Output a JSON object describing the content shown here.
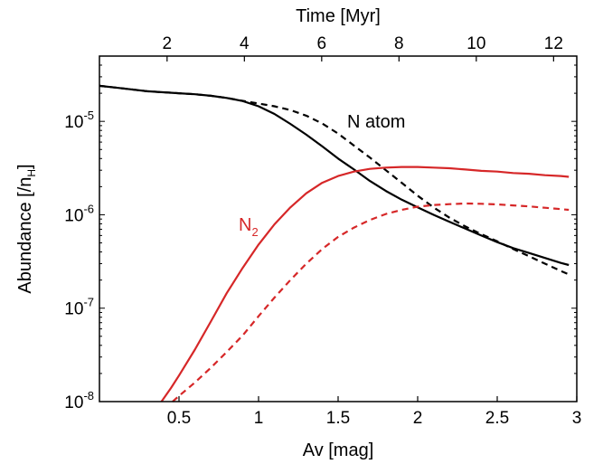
{
  "chart_data": {
    "type": "line",
    "ylabel_main": "Abundance [/n",
    "ylabel_sub": "H",
    "ylabel_end": "]",
    "xlabel": "Av [mag]",
    "xlabel_top": "Time [Myr]",
    "xlim": [
      0,
      3
    ],
    "ylim": [
      1e-08,
      5e-05
    ],
    "yscale": "log",
    "xlim_top": [
      0.25,
      12.6
    ],
    "x_ticks": [
      "0.5",
      "1",
      "1.5",
      "2",
      "2.5",
      "3"
    ],
    "x_tick_values": [
      0.5,
      1,
      1.5,
      2,
      2.5,
      3
    ],
    "top_ticks": [
      "2",
      "4",
      "6",
      "8",
      "10",
      "12"
    ],
    "top_tick_values": [
      2,
      4,
      6,
      8,
      10,
      12
    ],
    "y_ticks": [
      {
        "base": "10",
        "exp": "-5",
        "value": 1e-05
      },
      {
        "base": "10",
        "exp": "-6",
        "value": 1e-06
      },
      {
        "base": "10",
        "exp": "-7",
        "value": 1e-07
      },
      {
        "base": "10",
        "exp": "-8",
        "value": 1e-08
      }
    ],
    "annotations": [
      {
        "text": "N atom",
        "color": "#000000"
      },
      {
        "text": "N",
        "sub": "2",
        "color": "#d62728"
      }
    ],
    "series": [
      {
        "color": "#000000",
        "dash": "solid",
        "x": [
          0.0,
          0.1,
          0.2,
          0.3,
          0.4,
          0.5,
          0.6,
          0.7,
          0.8,
          0.9,
          1.0,
          1.1,
          1.2,
          1.3,
          1.4,
          1.5,
          1.6,
          1.7,
          1.8,
          1.9,
          2.0,
          2.1,
          2.2,
          2.3,
          2.4,
          2.5,
          2.6,
          2.7,
          2.8,
          2.9,
          2.95
        ],
        "values": [
          2.4e-05,
          2.3e-05,
          2.2e-05,
          2.1e-05,
          2.05e-05,
          2e-05,
          1.95e-05,
          1.88e-05,
          1.78e-05,
          1.65e-05,
          1.45e-05,
          1.2e-05,
          9.4e-06,
          7.2e-06,
          5.4e-06,
          4e-06,
          3.05e-06,
          2.3e-06,
          1.8e-06,
          1.45e-06,
          1.2e-06,
          1e-06,
          8.4e-07,
          7.1e-07,
          6e-07,
          5.1e-07,
          4.4e-07,
          3.9e-07,
          3.45e-07,
          3.05e-07,
          2.9e-07
        ]
      },
      {
        "color": "#000000",
        "dash": "dashed",
        "x": [
          0.0,
          0.1,
          0.2,
          0.3,
          0.4,
          0.5,
          0.6,
          0.7,
          0.8,
          0.9,
          1.0,
          1.1,
          1.2,
          1.3,
          1.4,
          1.5,
          1.6,
          1.7,
          1.8,
          1.9,
          2.0,
          2.1,
          2.2,
          2.3,
          2.4,
          2.5,
          2.6,
          2.7,
          2.8,
          2.9,
          2.95
        ],
        "values": [
          2.4e-05,
          2.3e-05,
          2.2e-05,
          2.1e-05,
          2.05e-05,
          2e-05,
          1.95e-05,
          1.88e-05,
          1.78e-05,
          1.66e-05,
          1.55e-05,
          1.45e-05,
          1.32e-05,
          1.15e-05,
          9.5e-06,
          7.4e-06,
          5.5e-06,
          4.1e-06,
          3e-06,
          2.2e-06,
          1.6e-06,
          1.2e-06,
          9.3e-07,
          7.5e-07,
          6.2e-07,
          5.2e-07,
          4.3e-07,
          3.6e-07,
          3e-07,
          2.5e-07,
          2.3e-07
        ]
      },
      {
        "color": "#d62728",
        "dash": "solid",
        "x": [
          0.39,
          0.45,
          0.5,
          0.6,
          0.7,
          0.8,
          0.9,
          1.0,
          1.1,
          1.2,
          1.3,
          1.4,
          1.5,
          1.6,
          1.7,
          1.8,
          1.9,
          2.0,
          2.1,
          2.2,
          2.3,
          2.4,
          2.5,
          2.6,
          2.7,
          2.8,
          2.9,
          2.95
        ],
        "values": [
          1e-08,
          1.4e-08,
          1.9e-08,
          3.6e-08,
          7.2e-08,
          1.45e-07,
          2.7e-07,
          4.8e-07,
          7.9e-07,
          1.2e-06,
          1.7e-06,
          2.2e-06,
          2.6e-06,
          2.9e-06,
          3.1e-06,
          3.2e-06,
          3.25e-06,
          3.25e-06,
          3.2e-06,
          3.15e-06,
          3.05e-06,
          2.95e-06,
          2.9e-06,
          2.8e-06,
          2.75e-06,
          2.65e-06,
          2.6e-06,
          2.55e-06
        ]
      },
      {
        "color": "#d62728",
        "dash": "dashed",
        "x": [
          0.46,
          0.5,
          0.6,
          0.7,
          0.8,
          0.9,
          1.0,
          1.1,
          1.2,
          1.3,
          1.4,
          1.5,
          1.6,
          1.7,
          1.8,
          1.9,
          2.0,
          2.1,
          2.2,
          2.3,
          2.4,
          2.5,
          2.6,
          2.7,
          2.8,
          2.9,
          2.95
        ],
        "values": [
          1e-08,
          1.15e-08,
          1.6e-08,
          2.3e-08,
          3.4e-08,
          5.1e-08,
          8.2e-08,
          1.3e-07,
          2e-07,
          3e-07,
          4.3e-07,
          5.8e-07,
          7.3e-07,
          8.8e-07,
          1.02e-06,
          1.13e-06,
          1.22e-06,
          1.27e-06,
          1.3e-06,
          1.32e-06,
          1.31e-06,
          1.29e-06,
          1.26e-06,
          1.23e-06,
          1.19e-06,
          1.15e-06,
          1.13e-06
        ]
      }
    ]
  }
}
